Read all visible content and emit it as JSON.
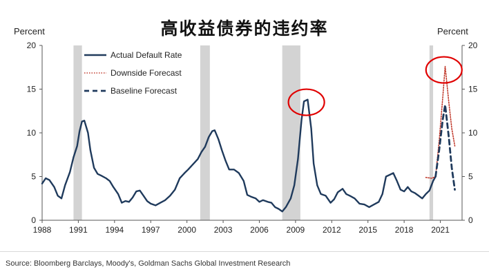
{
  "title": "高收益债券的违约率",
  "source": "Source: Bloomberg Barclays, Moody's, Goldman Sachs Global Investment Research",
  "chart_data": {
    "type": "line",
    "title": "高收益债券的违约率",
    "ylabel_left": "Percent",
    "ylabel_right": "Percent",
    "ylim": [
      0,
      20
    ],
    "xlim": [
      1988,
      2022.8
    ],
    "yticks": [
      0,
      5,
      10,
      15,
      20
    ],
    "xticks": [
      1988,
      1991,
      1994,
      1997,
      2000,
      2003,
      2006,
      2009,
      2012,
      2015,
      2018,
      2021
    ],
    "grid": false,
    "legend_position": "top-left",
    "recessions": [
      [
        1990.6,
        1991.3
      ],
      [
        2001.1,
        2001.9
      ],
      [
        2007.9,
        2009.4
      ],
      [
        2020.1,
        2020.4
      ]
    ],
    "series": [
      {
        "name": "Actual Default Rate",
        "style": "solid",
        "color": "#1f3a5c",
        "points": [
          [
            1988.0,
            4.2
          ],
          [
            1988.3,
            4.8
          ],
          [
            1988.6,
            4.6
          ],
          [
            1989.0,
            3.8
          ],
          [
            1989.3,
            2.8
          ],
          [
            1989.6,
            2.5
          ],
          [
            1989.9,
            4.0
          ],
          [
            1990.3,
            5.5
          ],
          [
            1990.6,
            7.2
          ],
          [
            1990.9,
            8.5
          ],
          [
            1991.1,
            10.2
          ],
          [
            1991.3,
            11.3
          ],
          [
            1991.5,
            11.4
          ],
          [
            1991.8,
            10.0
          ],
          [
            1992.0,
            8.0
          ],
          [
            1992.3,
            6.0
          ],
          [
            1992.6,
            5.3
          ],
          [
            1992.9,
            5.1
          ],
          [
            1993.3,
            4.8
          ],
          [
            1993.6,
            4.5
          ],
          [
            1993.9,
            3.8
          ],
          [
            1994.3,
            3.0
          ],
          [
            1994.6,
            2.0
          ],
          [
            1994.9,
            2.2
          ],
          [
            1995.2,
            2.1
          ],
          [
            1995.5,
            2.6
          ],
          [
            1995.8,
            3.3
          ],
          [
            1996.1,
            3.4
          ],
          [
            1996.4,
            2.8
          ],
          [
            1996.7,
            2.2
          ],
          [
            1997.0,
            1.9
          ],
          [
            1997.4,
            1.7
          ],
          [
            1997.8,
            2.0
          ],
          [
            1998.2,
            2.3
          ],
          [
            1998.6,
            2.8
          ],
          [
            1999.0,
            3.5
          ],
          [
            1999.4,
            4.8
          ],
          [
            1999.8,
            5.4
          ],
          [
            2000.1,
            5.8
          ],
          [
            2000.5,
            6.4
          ],
          [
            2000.9,
            7.0
          ],
          [
            2001.2,
            7.8
          ],
          [
            2001.5,
            8.4
          ],
          [
            2001.8,
            9.5
          ],
          [
            2002.1,
            10.2
          ],
          [
            2002.3,
            10.3
          ],
          [
            2002.6,
            9.3
          ],
          [
            2002.9,
            8.0
          ],
          [
            2003.2,
            6.8
          ],
          [
            2003.5,
            5.8
          ],
          [
            2003.9,
            5.8
          ],
          [
            2004.3,
            5.4
          ],
          [
            2004.7,
            4.5
          ],
          [
            2005.0,
            2.9
          ],
          [
            2005.3,
            2.7
          ],
          [
            2005.7,
            2.5
          ],
          [
            2006.0,
            2.1
          ],
          [
            2006.3,
            2.3
          ],
          [
            2006.7,
            2.1
          ],
          [
            2007.0,
            2.0
          ],
          [
            2007.3,
            1.5
          ],
          [
            2007.6,
            1.3
          ],
          [
            2007.9,
            1.0
          ],
          [
            2008.2,
            1.5
          ],
          [
            2008.6,
            2.5
          ],
          [
            2008.9,
            4.0
          ],
          [
            2009.2,
            7.0
          ],
          [
            2009.5,
            11.5
          ],
          [
            2009.7,
            13.6
          ],
          [
            2010.0,
            13.8
          ],
          [
            2010.3,
            10.5
          ],
          [
            2010.5,
            6.5
          ],
          [
            2010.8,
            4.0
          ],
          [
            2011.1,
            3.0
          ],
          [
            2011.5,
            2.8
          ],
          [
            2011.9,
            2.0
          ],
          [
            2012.2,
            2.4
          ],
          [
            2012.5,
            3.2
          ],
          [
            2012.9,
            3.6
          ],
          [
            2013.2,
            3.0
          ],
          [
            2013.5,
            2.8
          ],
          [
            2013.9,
            2.5
          ],
          [
            2014.3,
            1.9
          ],
          [
            2014.7,
            1.8
          ],
          [
            2015.1,
            1.5
          ],
          [
            2015.5,
            1.8
          ],
          [
            2015.9,
            2.1
          ],
          [
            2016.2,
            3.0
          ],
          [
            2016.5,
            5.0
          ],
          [
            2016.8,
            5.2
          ],
          [
            2017.1,
            5.4
          ],
          [
            2017.4,
            4.5
          ],
          [
            2017.7,
            3.5
          ],
          [
            2018.0,
            3.3
          ],
          [
            2018.3,
            3.8
          ],
          [
            2018.6,
            3.3
          ],
          [
            2018.9,
            3.1
          ],
          [
            2019.2,
            2.8
          ],
          [
            2019.5,
            2.5
          ],
          [
            2019.8,
            3.0
          ],
          [
            2020.1,
            3.4
          ],
          [
            2020.4,
            4.5
          ],
          [
            2020.6,
            5.0
          ]
        ]
      },
      {
        "name": "Downside Forecast",
        "style": "dotted",
        "color": "#c0392b",
        "points": [
          [
            2019.8,
            4.9
          ],
          [
            2020.3,
            4.8
          ],
          [
            2020.6,
            5.0
          ],
          [
            2020.9,
            9.0
          ],
          [
            2021.2,
            14.0
          ],
          [
            2021.4,
            17.6
          ],
          [
            2021.7,
            13.5
          ],
          [
            2021.95,
            10.5
          ],
          [
            2022.2,
            8.5
          ]
        ]
      },
      {
        "name": "Baseline Forecast",
        "style": "dashed",
        "color": "#1f3a5c",
        "points": [
          [
            2020.6,
            5.0
          ],
          [
            2020.9,
            8.0
          ],
          [
            2021.2,
            11.5
          ],
          [
            2021.4,
            13.2
          ],
          [
            2021.7,
            9.5
          ],
          [
            2021.95,
            6.0
          ],
          [
            2022.2,
            3.5
          ]
        ]
      }
    ],
    "annotations": [
      {
        "type": "circle",
        "x": 2009.9,
        "y": 13.5,
        "color": "#e00000"
      },
      {
        "type": "circle",
        "x": 2021.3,
        "y": 17.2,
        "color": "#e00000"
      }
    ]
  }
}
